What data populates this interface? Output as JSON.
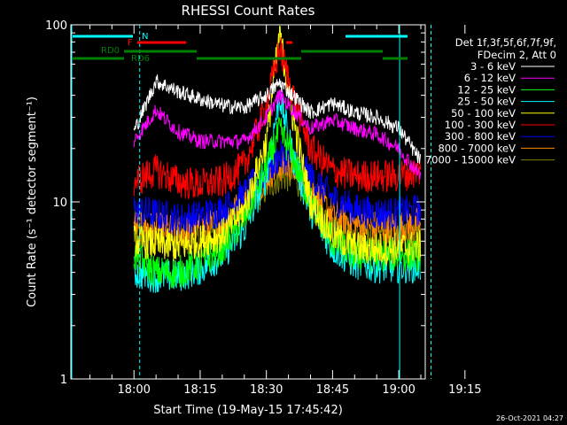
{
  "chart_data": {
    "type": "line",
    "title": "RHESSI Count Rates",
    "xlabel": "Start Time (19-May-15 17:45:42)",
    "ylabel": "Count Rate (s⁻¹ detector segment⁻¹)",
    "y_scale": "log",
    "ylim": [
      1,
      100
    ],
    "x_range_minutes": [
      -14.3,
      66.0
    ],
    "x_ticks": [
      {
        "label": "18:00",
        "minutes": 0
      },
      {
        "label": "18:15",
        "minutes": 15
      },
      {
        "label": "18:30",
        "minutes": 30
      },
      {
        "label": "18:45",
        "minutes": 45
      },
      {
        "label": "19:00",
        "minutes": 60
      },
      {
        "label": "19:15",
        "minutes": 75
      }
    ],
    "y_ticks": [
      {
        "label": "1",
        "value": 1
      },
      {
        "label": "10",
        "value": 10
      },
      {
        "label": "100",
        "value": 100
      }
    ],
    "legend_header": [
      "Det 1f,3f,5f,6f,7f,9f,",
      "FDecim 2, Att 0"
    ],
    "legend_placement": "right",
    "series": [
      {
        "name": "3 - 6 keV",
        "color": "#ffffff",
        "points": [
          [
            0,
            25
          ],
          [
            5,
            48
          ],
          [
            10,
            42
          ],
          [
            15,
            38
          ],
          [
            20,
            35
          ],
          [
            25,
            34
          ],
          [
            30,
            40
          ],
          [
            33,
            47
          ],
          [
            36,
            40
          ],
          [
            40,
            32
          ],
          [
            45,
            36
          ],
          [
            50,
            32
          ],
          [
            55,
            30
          ],
          [
            60,
            26
          ],
          [
            65,
            17
          ]
        ]
      },
      {
        "name": "6 - 12 keV",
        "color": "#ff00ff",
        "points": [
          [
            0,
            22
          ],
          [
            5,
            33
          ],
          [
            10,
            25
          ],
          [
            15,
            22
          ],
          [
            20,
            22
          ],
          [
            25,
            22
          ],
          [
            30,
            30
          ],
          [
            33,
            40
          ],
          [
            36,
            33
          ],
          [
            40,
            26
          ],
          [
            45,
            29
          ],
          [
            50,
            26
          ],
          [
            55,
            24
          ],
          [
            60,
            20
          ],
          [
            65,
            14
          ]
        ]
      },
      {
        "name": "12 - 25 keV",
        "color": "#00ff00",
        "points": [
          [
            0,
            5
          ],
          [
            5,
            4
          ],
          [
            10,
            4
          ],
          [
            15,
            4.5
          ],
          [
            20,
            5.5
          ],
          [
            25,
            8
          ],
          [
            30,
            16
          ],
          [
            33,
            25
          ],
          [
            36,
            18
          ],
          [
            40,
            10
          ],
          [
            45,
            6
          ],
          [
            50,
            5
          ],
          [
            55,
            5
          ],
          [
            60,
            5
          ],
          [
            65,
            5
          ]
        ]
      },
      {
        "name": "25 - 50 keV",
        "color": "#00ffff",
        "points": [
          [
            0,
            4
          ],
          [
            5,
            3.8
          ],
          [
            10,
            3.8
          ],
          [
            15,
            4.2
          ],
          [
            20,
            5
          ],
          [
            25,
            7
          ],
          [
            30,
            14
          ],
          [
            33,
            40
          ],
          [
            36,
            18
          ],
          [
            40,
            9
          ],
          [
            45,
            5.5
          ],
          [
            50,
            4.5
          ],
          [
            55,
            4.3
          ],
          [
            60,
            4.3
          ],
          [
            65,
            4.3
          ]
        ]
      },
      {
        "name": "50 - 100 keV",
        "color": "#ffff00",
        "points": [
          [
            0,
            6
          ],
          [
            5,
            5.8
          ],
          [
            10,
            5.6
          ],
          [
            15,
            6
          ],
          [
            20,
            6.5
          ],
          [
            25,
            9
          ],
          [
            30,
            22
          ],
          [
            33,
            90
          ],
          [
            36,
            30
          ],
          [
            40,
            10
          ],
          [
            45,
            6.5
          ],
          [
            50,
            5.5
          ],
          [
            55,
            5.4
          ],
          [
            60,
            5.5
          ],
          [
            65,
            5.6
          ]
        ]
      },
      {
        "name": "100 - 300 keV",
        "color": "#ff0000",
        "points": [
          [
            0,
            13
          ],
          [
            5,
            15
          ],
          [
            10,
            13
          ],
          [
            15,
            12.5
          ],
          [
            20,
            13
          ],
          [
            25,
            16
          ],
          [
            30,
            35
          ],
          [
            33,
            75
          ],
          [
            36,
            40
          ],
          [
            40,
            20
          ],
          [
            45,
            15
          ],
          [
            50,
            14
          ],
          [
            55,
            14
          ],
          [
            60,
            14
          ],
          [
            65,
            15
          ]
        ]
      },
      {
        "name": "300 - 800 keV",
        "color": "#0000ff",
        "points": [
          [
            0,
            9
          ],
          [
            5,
            8.5
          ],
          [
            10,
            8
          ],
          [
            15,
            8.3
          ],
          [
            20,
            9
          ],
          [
            25,
            11
          ],
          [
            30,
            15
          ],
          [
            33,
            18
          ],
          [
            36,
            18
          ],
          [
            40,
            14
          ],
          [
            45,
            10.5
          ],
          [
            50,
            9
          ],
          [
            55,
            8.6
          ],
          [
            60,
            8.6
          ],
          [
            65,
            9
          ]
        ]
      },
      {
        "name": "800 - 7000 keV",
        "color": "#ff8800",
        "points": [
          [
            0,
            7.5
          ],
          [
            5,
            7
          ],
          [
            10,
            6.8
          ],
          [
            15,
            7
          ],
          [
            20,
            7.7
          ],
          [
            25,
            10
          ],
          [
            30,
            14
          ],
          [
            33,
            16
          ],
          [
            36,
            16
          ],
          [
            40,
            12
          ],
          [
            45,
            8.5
          ],
          [
            50,
            7.5
          ],
          [
            55,
            7.2
          ],
          [
            60,
            7.2
          ],
          [
            65,
            7.5
          ]
        ]
      },
      {
        "name": "7000 - 15000 keV",
        "color": "#808000",
        "points": [
          [
            0,
            6.5
          ],
          [
            5,
            6.2
          ],
          [
            10,
            6
          ],
          [
            15,
            6.2
          ],
          [
            20,
            7
          ],
          [
            25,
            9
          ],
          [
            30,
            12
          ],
          [
            33,
            14
          ],
          [
            36,
            14
          ],
          [
            40,
            11
          ],
          [
            45,
            7.5
          ],
          [
            50,
            6.5
          ],
          [
            55,
            6.3
          ],
          [
            60,
            6.3
          ],
          [
            65,
            6.5
          ]
        ]
      }
    ],
    "annotations": [
      {
        "text": "N",
        "color": "#00ffff"
      },
      {
        "text": "F",
        "color": "#ff0000"
      },
      {
        "text": "RD0",
        "color": "#008000"
      },
      {
        "text": "RD6",
        "color": "#008000"
      }
    ],
    "timestamp": "26-Oct-2021 04:27"
  }
}
